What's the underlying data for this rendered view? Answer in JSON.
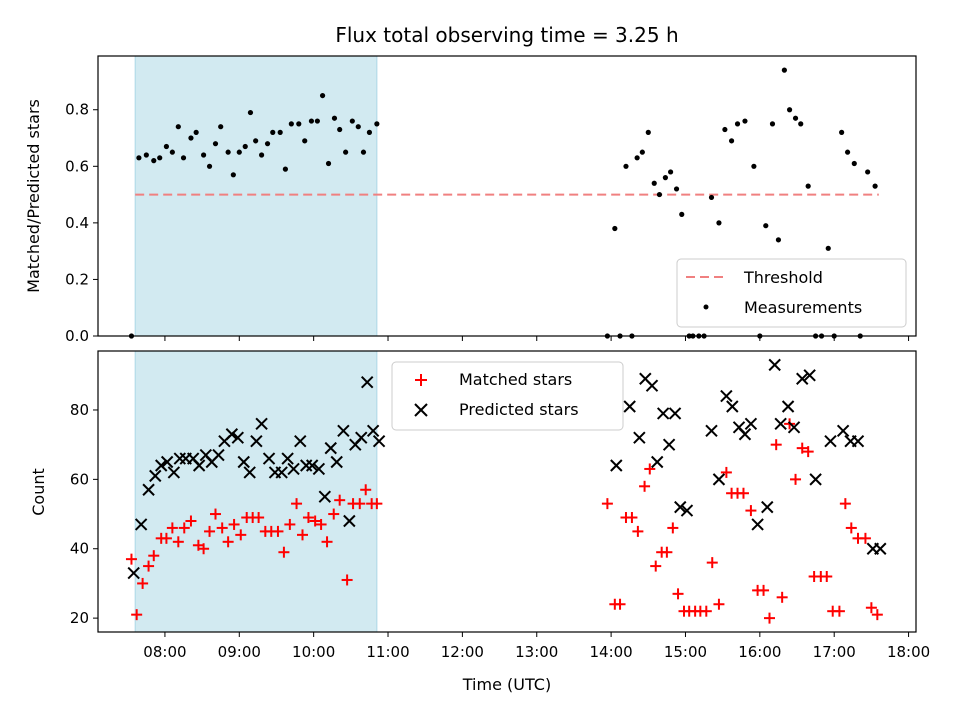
{
  "chart_data": [
    {
      "type": "scatter",
      "title": "Flux total observing time = 3.25 h",
      "ylabel": "Matched/Predicted stars",
      "xlabel": "",
      "x_unit": "hours UTC",
      "xlim": [
        7.1,
        18.1
      ],
      "ylim": [
        0,
        0.99
      ],
      "yticks": [
        "0.0",
        "0.2",
        "0.4",
        "0.6",
        "0.8"
      ],
      "ytick_values": [
        0,
        0.2,
        0.4,
        0.6,
        0.8
      ],
      "shaded_span": {
        "from": 7.6,
        "to": 10.85,
        "color": "#add8e6"
      },
      "legend": {
        "position": "lower-right",
        "entries": [
          "Threshold",
          "Measurements"
        ]
      },
      "threshold": {
        "name": "Threshold",
        "value": 0.5,
        "x_from": 7.6,
        "x_to": 17.6,
        "color": "#f08080"
      },
      "series": [
        {
          "name": "Measurements",
          "color": "#000000",
          "points": [
            [
              7.55,
              0.0
            ],
            [
              7.65,
              0.63
            ],
            [
              7.75,
              0.64
            ],
            [
              7.85,
              0.62
            ],
            [
              7.93,
              0.63
            ],
            [
              8.02,
              0.67
            ],
            [
              8.1,
              0.65
            ],
            [
              8.18,
              0.74
            ],
            [
              8.25,
              0.63
            ],
            [
              8.35,
              0.7
            ],
            [
              8.42,
              0.72
            ],
            [
              8.52,
              0.64
            ],
            [
              8.6,
              0.6
            ],
            [
              8.68,
              0.68
            ],
            [
              8.75,
              0.74
            ],
            [
              8.85,
              0.65
            ],
            [
              8.92,
              0.57
            ],
            [
              9.0,
              0.65
            ],
            [
              9.08,
              0.67
            ],
            [
              9.15,
              0.79
            ],
            [
              9.22,
              0.69
            ],
            [
              9.3,
              0.64
            ],
            [
              9.38,
              0.68
            ],
            [
              9.45,
              0.72
            ],
            [
              9.55,
              0.72
            ],
            [
              9.62,
              0.59
            ],
            [
              9.7,
              0.75
            ],
            [
              9.8,
              0.75
            ],
            [
              9.88,
              0.69
            ],
            [
              9.97,
              0.76
            ],
            [
              10.05,
              0.76
            ],
            [
              10.12,
              0.85
            ],
            [
              10.2,
              0.61
            ],
            [
              10.28,
              0.77
            ],
            [
              10.35,
              0.73
            ],
            [
              10.43,
              0.65
            ],
            [
              10.52,
              0.76
            ],
            [
              10.6,
              0.74
            ],
            [
              10.67,
              0.65
            ],
            [
              10.75,
              0.72
            ],
            [
              10.85,
              0.75
            ],
            [
              13.95,
              0.0
            ],
            [
              14.05,
              0.38
            ],
            [
              14.12,
              0.0
            ],
            [
              14.2,
              0.6
            ],
            [
              14.28,
              0.0
            ],
            [
              14.35,
              0.63
            ],
            [
              14.42,
              0.65
            ],
            [
              14.5,
              0.72
            ],
            [
              14.58,
              0.54
            ],
            [
              14.65,
              0.5
            ],
            [
              14.73,
              0.56
            ],
            [
              14.8,
              0.58
            ],
            [
              14.88,
              0.52
            ],
            [
              14.95,
              0.43
            ],
            [
              15.05,
              0.0
            ],
            [
              15.1,
              0.0
            ],
            [
              15.18,
              0.0
            ],
            [
              15.25,
              0.0
            ],
            [
              15.35,
              0.49
            ],
            [
              15.45,
              0.4
            ],
            [
              15.53,
              0.73
            ],
            [
              15.62,
              0.69
            ],
            [
              15.7,
              0.75
            ],
            [
              15.8,
              0.76
            ],
            [
              15.92,
              0.6
            ],
            [
              16.0,
              0.0
            ],
            [
              16.08,
              0.39
            ],
            [
              16.17,
              0.75
            ],
            [
              16.25,
              0.34
            ],
            [
              16.33,
              0.94
            ],
            [
              16.4,
              0.8
            ],
            [
              16.48,
              0.77
            ],
            [
              16.55,
              0.75
            ],
            [
              16.65,
              0.53
            ],
            [
              16.75,
              0.0
            ],
            [
              16.83,
              0.0
            ],
            [
              16.92,
              0.31
            ],
            [
              17.0,
              0.0
            ],
            [
              17.1,
              0.72
            ],
            [
              17.18,
              0.65
            ],
            [
              17.27,
              0.61
            ],
            [
              17.35,
              0.0
            ],
            [
              17.45,
              0.58
            ],
            [
              17.55,
              0.53
            ]
          ]
        }
      ]
    },
    {
      "type": "scatter",
      "title": "",
      "ylabel": "Count",
      "xlabel": "Time (UTC)",
      "x_unit": "hours UTC",
      "xlim": [
        7.1,
        18.1
      ],
      "ylim": [
        16,
        97
      ],
      "yticks": [
        "20",
        "40",
        "60",
        "80"
      ],
      "ytick_values": [
        20,
        40,
        60,
        80
      ],
      "xticks": [
        "08:00",
        "09:00",
        "10:00",
        "11:00",
        "12:00",
        "13:00",
        "14:00",
        "15:00",
        "16:00",
        "17:00",
        "18:00"
      ],
      "xtick_values": [
        8,
        9,
        10,
        11,
        12,
        13,
        14,
        15,
        16,
        17,
        18
      ],
      "shaded_span": {
        "from": 7.6,
        "to": 10.85,
        "color": "#add8e6"
      },
      "legend": {
        "position": "top-center",
        "entries": [
          "Matched stars",
          "Predicted stars"
        ]
      },
      "series": [
        {
          "name": "Matched stars",
          "marker": "plus",
          "color": "#ff0000",
          "points": [
            [
              7.55,
              37
            ],
            [
              7.62,
              21
            ],
            [
              7.7,
              30
            ],
            [
              7.78,
              35
            ],
            [
              7.85,
              38
            ],
            [
              7.95,
              43
            ],
            [
              8.02,
              43
            ],
            [
              8.1,
              46
            ],
            [
              8.18,
              42
            ],
            [
              8.26,
              46
            ],
            [
              8.35,
              48
            ],
            [
              8.45,
              41
            ],
            [
              8.52,
              40
            ],
            [
              8.6,
              45
            ],
            [
              8.68,
              50
            ],
            [
              8.77,
              46
            ],
            [
              8.85,
              42
            ],
            [
              8.93,
              47
            ],
            [
              9.02,
              44
            ],
            [
              9.1,
              49
            ],
            [
              9.18,
              49
            ],
            [
              9.26,
              49
            ],
            [
              9.35,
              45
            ],
            [
              9.43,
              45
            ],
            [
              9.52,
              45
            ],
            [
              9.6,
              39
            ],
            [
              9.68,
              47
            ],
            [
              9.77,
              53
            ],
            [
              9.85,
              44
            ],
            [
              9.93,
              49
            ],
            [
              10.02,
              48
            ],
            [
              10.1,
              47
            ],
            [
              10.18,
              42
            ],
            [
              10.27,
              50
            ],
            [
              10.35,
              54
            ],
            [
              10.45,
              31
            ],
            [
              10.53,
              53
            ],
            [
              10.62,
              53
            ],
            [
              10.7,
              57
            ],
            [
              10.78,
              53
            ],
            [
              10.85,
              53
            ],
            [
              13.95,
              53
            ],
            [
              14.05,
              24
            ],
            [
              14.12,
              24
            ],
            [
              14.2,
              49
            ],
            [
              14.28,
              49
            ],
            [
              14.36,
              45
            ],
            [
              14.45,
              58
            ],
            [
              14.52,
              63
            ],
            [
              14.6,
              35
            ],
            [
              14.68,
              39
            ],
            [
              14.75,
              39
            ],
            [
              14.83,
              46
            ],
            [
              14.9,
              27
            ],
            [
              14.98,
              22
            ],
            [
              15.05,
              22
            ],
            [
              15.13,
              22
            ],
            [
              15.2,
              22
            ],
            [
              15.28,
              22
            ],
            [
              15.36,
              36
            ],
            [
              15.45,
              24
            ],
            [
              15.55,
              62
            ],
            [
              15.62,
              56
            ],
            [
              15.7,
              56
            ],
            [
              15.78,
              56
            ],
            [
              15.88,
              51
            ],
            [
              15.97,
              28
            ],
            [
              16.05,
              28
            ],
            [
              16.13,
              20
            ],
            [
              16.22,
              70
            ],
            [
              16.3,
              26
            ],
            [
              16.4,
              76
            ],
            [
              16.48,
              60
            ],
            [
              16.57,
              69
            ],
            [
              16.65,
              68
            ],
            [
              16.73,
              32
            ],
            [
              16.82,
              32
            ],
            [
              16.9,
              32
            ],
            [
              16.98,
              22
            ],
            [
              17.07,
              22
            ],
            [
              17.15,
              53
            ],
            [
              17.23,
              46
            ],
            [
              17.32,
              43
            ],
            [
              17.42,
              43
            ],
            [
              17.5,
              23
            ],
            [
              17.58,
              21
            ]
          ]
        },
        {
          "name": "Predicted stars",
          "marker": "x",
          "color": "#000000",
          "points": [
            [
              7.58,
              33
            ],
            [
              7.68,
              47
            ],
            [
              7.78,
              57
            ],
            [
              7.87,
              61
            ],
            [
              7.95,
              64
            ],
            [
              8.03,
              65
            ],
            [
              8.12,
              62
            ],
            [
              8.2,
              66
            ],
            [
              8.28,
              66
            ],
            [
              8.38,
              66
            ],
            [
              8.46,
              64
            ],
            [
              8.55,
              67
            ],
            [
              8.63,
              65
            ],
            [
              8.72,
              67
            ],
            [
              8.8,
              71
            ],
            [
              8.9,
              73
            ],
            [
              8.98,
              72
            ],
            [
              9.06,
              65
            ],
            [
              9.14,
              62
            ],
            [
              9.23,
              71
            ],
            [
              9.3,
              76
            ],
            [
              9.4,
              66
            ],
            [
              9.48,
              62
            ],
            [
              9.57,
              62
            ],
            [
              9.65,
              66
            ],
            [
              9.73,
              63
            ],
            [
              9.82,
              71
            ],
            [
              9.9,
              64
            ],
            [
              9.98,
              64
            ],
            [
              10.07,
              63
            ],
            [
              10.15,
              55
            ],
            [
              10.23,
              69
            ],
            [
              10.31,
              65
            ],
            [
              10.4,
              74
            ],
            [
              10.48,
              48
            ],
            [
              10.56,
              70
            ],
            [
              10.64,
              72
            ],
            [
              10.72,
              88
            ],
            [
              10.8,
              74
            ],
            [
              10.88,
              71
            ],
            [
              14.07,
              64
            ],
            [
              14.25,
              81
            ],
            [
              14.38,
              72
            ],
            [
              14.46,
              89
            ],
            [
              14.55,
              87
            ],
            [
              14.62,
              65
            ],
            [
              14.7,
              79
            ],
            [
              14.78,
              70
            ],
            [
              14.86,
              79
            ],
            [
              14.93,
              52
            ],
            [
              15.02,
              51
            ],
            [
              15.35,
              74
            ],
            [
              15.45,
              60
            ],
            [
              15.55,
              84
            ],
            [
              15.63,
              81
            ],
            [
              15.72,
              75
            ],
            [
              15.8,
              73
            ],
            [
              15.88,
              76
            ],
            [
              15.97,
              47
            ],
            [
              16.1,
              52
            ],
            [
              16.2,
              93
            ],
            [
              16.28,
              76
            ],
            [
              16.38,
              81
            ],
            [
              16.46,
              75
            ],
            [
              16.57,
              89
            ],
            [
              16.67,
              90
            ],
            [
              16.75,
              60
            ],
            [
              16.95,
              71
            ],
            [
              17.12,
              74
            ],
            [
              17.22,
              71
            ],
            [
              17.32,
              71
            ],
            [
              17.52,
              40
            ],
            [
              17.62,
              40
            ]
          ]
        }
      ]
    }
  ]
}
